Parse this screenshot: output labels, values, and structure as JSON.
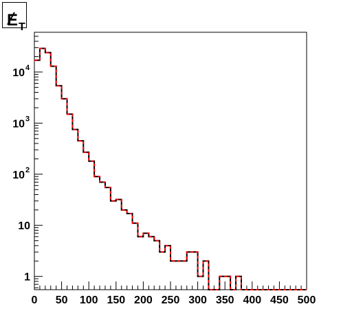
{
  "title": {
    "main": "E",
    "sub": "T"
  },
  "chart_data": {
    "type": "histogram",
    "title": "E/T",
    "xlabel": "",
    "ylabel": "",
    "xlim": [
      0,
      500
    ],
    "ylim": [
      0.55,
      60000
    ],
    "yscale": "log",
    "grid": false,
    "legend": "none",
    "x_ticks": [
      0,
      50,
      100,
      150,
      200,
      250,
      300,
      350,
      400,
      450,
      500
    ],
    "x_tick_labels": [
      "0",
      "50",
      "100",
      "150",
      "200",
      "250",
      "300",
      "350",
      "400",
      "450",
      "500"
    ],
    "y_ticks": [
      {
        "base": "1",
        "exp": "",
        "value": 1
      },
      {
        "base": "10",
        "exp": "",
        "value": 10
      },
      {
        "base": "10",
        "exp": "2",
        "value": 100
      },
      {
        "base": "10",
        "exp": "3",
        "value": 1000
      },
      {
        "base": "10",
        "exp": "4",
        "value": 10000
      }
    ],
    "bin_width": 10,
    "bin_edges_start": 0,
    "series": [
      {
        "style": "solid",
        "color": "#000000",
        "values": [
          17000,
          29000,
          24000,
          13000,
          5400,
          3000,
          1500,
          750,
          450,
          270,
          180,
          90,
          70,
          55,
          30,
          32,
          20,
          17,
          11,
          6,
          7,
          6,
          5,
          3,
          4,
          2,
          2,
          2,
          3,
          3,
          1,
          2,
          0,
          0,
          1,
          1,
          0,
          1,
          0,
          0,
          0,
          0,
          0,
          0,
          0,
          0,
          0,
          0,
          0,
          0
        ]
      },
      {
        "style": "dashed",
        "color": "#ff0000",
        "values": [
          17000,
          29000,
          24000,
          13000,
          5400,
          3000,
          1500,
          750,
          450,
          270,
          180,
          90,
          70,
          55,
          30,
          32,
          20,
          17,
          11,
          6,
          7,
          6,
          5,
          3,
          4,
          2,
          2,
          2,
          3,
          3,
          1,
          2,
          0,
          0,
          1,
          1,
          0,
          1,
          0,
          0,
          0,
          0,
          0,
          0,
          0,
          0,
          0,
          0,
          0,
          0
        ]
      }
    ]
  }
}
